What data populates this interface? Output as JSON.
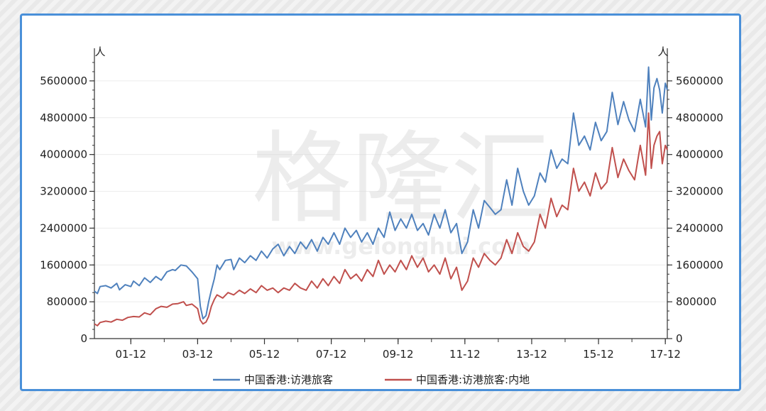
{
  "watermark": {
    "brand": "格隆汇",
    "url": "www.gelonghui.com"
  },
  "chart_data": {
    "type": "line",
    "title": "",
    "x_tick_labels": [
      "01-12",
      "03-12",
      "05-12",
      "07-12",
      "09-12",
      "11-12",
      "13-12",
      "15-12",
      "17-12"
    ],
    "x_range": [
      2000.83,
      2017.98
    ],
    "y_unit_left": "人",
    "y_unit_right": "人",
    "ylim": [
      0,
      6000000
    ],
    "y_ticks": [
      0,
      800000,
      1600000,
      2400000,
      3200000,
      4000000,
      4800000,
      5600000
    ],
    "y_tick_labels": [
      "0",
      "800000",
      "1600000",
      "2400000",
      "3200000",
      "4000000",
      "4800000",
      "5600000"
    ],
    "grid": true,
    "legend_position": "bottom",
    "series": [
      {
        "name": "中国香港:访港旅客",
        "color": "#4f81bd",
        "points": [
          [
            2000.83,
            1030000
          ],
          [
            2000.92,
            980000
          ],
          [
            2001.0,
            1130000
          ],
          [
            2001.17,
            1150000
          ],
          [
            2001.33,
            1100000
          ],
          [
            2001.5,
            1200000
          ],
          [
            2001.58,
            1060000
          ],
          [
            2001.75,
            1170000
          ],
          [
            2001.92,
            1130000
          ],
          [
            2002.0,
            1250000
          ],
          [
            2002.17,
            1150000
          ],
          [
            2002.33,
            1320000
          ],
          [
            2002.5,
            1220000
          ],
          [
            2002.67,
            1350000
          ],
          [
            2002.83,
            1270000
          ],
          [
            2003.0,
            1450000
          ],
          [
            2003.17,
            1500000
          ],
          [
            2003.25,
            1480000
          ],
          [
            2003.42,
            1600000
          ],
          [
            2003.58,
            1580000
          ],
          [
            2003.75,
            1450000
          ],
          [
            2003.92,
            1300000
          ],
          [
            2004.0,
            700000
          ],
          [
            2004.08,
            430000
          ],
          [
            2004.17,
            500000
          ],
          [
            2004.25,
            800000
          ],
          [
            2004.33,
            1050000
          ],
          [
            2004.42,
            1300000
          ],
          [
            2004.5,
            1600000
          ],
          [
            2004.58,
            1500000
          ],
          [
            2004.75,
            1700000
          ],
          [
            2004.92,
            1720000
          ],
          [
            2005.0,
            1500000
          ],
          [
            2005.17,
            1750000
          ],
          [
            2005.33,
            1650000
          ],
          [
            2005.5,
            1800000
          ],
          [
            2005.67,
            1700000
          ],
          [
            2005.83,
            1900000
          ],
          [
            2006.0,
            1750000
          ],
          [
            2006.17,
            1950000
          ],
          [
            2006.33,
            2050000
          ],
          [
            2006.5,
            1800000
          ],
          [
            2006.67,
            2000000
          ],
          [
            2006.83,
            1850000
          ],
          [
            2007.0,
            2100000
          ],
          [
            2007.17,
            1950000
          ],
          [
            2007.33,
            2150000
          ],
          [
            2007.5,
            1900000
          ],
          [
            2007.67,
            2200000
          ],
          [
            2007.83,
            2050000
          ],
          [
            2008.0,
            2300000
          ],
          [
            2008.17,
            2050000
          ],
          [
            2008.33,
            2400000
          ],
          [
            2008.5,
            2200000
          ],
          [
            2008.67,
            2350000
          ],
          [
            2008.83,
            2100000
          ],
          [
            2009.0,
            2300000
          ],
          [
            2009.17,
            2050000
          ],
          [
            2009.33,
            2400000
          ],
          [
            2009.5,
            2200000
          ],
          [
            2009.67,
            2750000
          ],
          [
            2009.83,
            2350000
          ],
          [
            2010.0,
            2600000
          ],
          [
            2010.17,
            2400000
          ],
          [
            2010.33,
            2700000
          ],
          [
            2010.5,
            2350000
          ],
          [
            2010.67,
            2500000
          ],
          [
            2010.83,
            2250000
          ],
          [
            2011.0,
            2700000
          ],
          [
            2011.17,
            2400000
          ],
          [
            2011.33,
            2800000
          ],
          [
            2011.5,
            2300000
          ],
          [
            2011.67,
            2500000
          ],
          [
            2011.83,
            1850000
          ],
          [
            2012.0,
            2100000
          ],
          [
            2012.17,
            2800000
          ],
          [
            2012.33,
            2400000
          ],
          [
            2012.5,
            3000000
          ],
          [
            2012.67,
            2850000
          ],
          [
            2012.83,
            2700000
          ],
          [
            2013.0,
            2800000
          ],
          [
            2013.17,
            3450000
          ],
          [
            2013.33,
            2900000
          ],
          [
            2013.5,
            3700000
          ],
          [
            2013.67,
            3200000
          ],
          [
            2013.83,
            2900000
          ],
          [
            2014.0,
            3100000
          ],
          [
            2014.17,
            3600000
          ],
          [
            2014.33,
            3400000
          ],
          [
            2014.5,
            4100000
          ],
          [
            2014.67,
            3700000
          ],
          [
            2014.83,
            3900000
          ],
          [
            2015.0,
            3800000
          ],
          [
            2015.17,
            4900000
          ],
          [
            2015.33,
            4200000
          ],
          [
            2015.5,
            4400000
          ],
          [
            2015.67,
            4100000
          ],
          [
            2015.83,
            4700000
          ],
          [
            2016.0,
            4300000
          ],
          [
            2016.17,
            4500000
          ],
          [
            2016.33,
            5350000
          ],
          [
            2016.5,
            4650000
          ],
          [
            2016.67,
            5150000
          ],
          [
            2016.83,
            4750000
          ],
          [
            2017.0,
            4500000
          ],
          [
            2017.17,
            5200000
          ],
          [
            2017.33,
            4600000
          ],
          [
            2017.42,
            5900000
          ],
          [
            2017.5,
            4750000
          ],
          [
            2017.58,
            5450000
          ],
          [
            2017.67,
            5650000
          ],
          [
            2017.75,
            5400000
          ],
          [
            2017.83,
            4900000
          ],
          [
            2017.92,
            5550000
          ],
          [
            2017.98,
            5400000
          ]
        ]
      },
      {
        "name": "中国香港:访港旅客:内地",
        "color": "#c0504d",
        "points": [
          [
            2000.83,
            320000
          ],
          [
            2000.92,
            280000
          ],
          [
            2001.0,
            350000
          ],
          [
            2001.17,
            380000
          ],
          [
            2001.33,
            360000
          ],
          [
            2001.5,
            420000
          ],
          [
            2001.67,
            400000
          ],
          [
            2001.83,
            460000
          ],
          [
            2002.0,
            480000
          ],
          [
            2002.17,
            470000
          ],
          [
            2002.33,
            560000
          ],
          [
            2002.5,
            520000
          ],
          [
            2002.67,
            650000
          ],
          [
            2002.83,
            700000
          ],
          [
            2003.0,
            680000
          ],
          [
            2003.17,
            750000
          ],
          [
            2003.33,
            760000
          ],
          [
            2003.5,
            800000
          ],
          [
            2003.58,
            720000
          ],
          [
            2003.75,
            750000
          ],
          [
            2003.92,
            650000
          ],
          [
            2004.0,
            400000
          ],
          [
            2004.08,
            320000
          ],
          [
            2004.17,
            360000
          ],
          [
            2004.25,
            480000
          ],
          [
            2004.33,
            700000
          ],
          [
            2004.42,
            850000
          ],
          [
            2004.5,
            950000
          ],
          [
            2004.67,
            880000
          ],
          [
            2004.83,
            1000000
          ],
          [
            2005.0,
            950000
          ],
          [
            2005.17,
            1050000
          ],
          [
            2005.33,
            980000
          ],
          [
            2005.5,
            1080000
          ],
          [
            2005.67,
            1000000
          ],
          [
            2005.83,
            1150000
          ],
          [
            2006.0,
            1050000
          ],
          [
            2006.17,
            1100000
          ],
          [
            2006.33,
            1000000
          ],
          [
            2006.5,
            1100000
          ],
          [
            2006.67,
            1050000
          ],
          [
            2006.83,
            1200000
          ],
          [
            2007.0,
            1100000
          ],
          [
            2007.17,
            1050000
          ],
          [
            2007.33,
            1250000
          ],
          [
            2007.5,
            1100000
          ],
          [
            2007.67,
            1300000
          ],
          [
            2007.83,
            1150000
          ],
          [
            2008.0,
            1350000
          ],
          [
            2008.17,
            1200000
          ],
          [
            2008.33,
            1500000
          ],
          [
            2008.5,
            1300000
          ],
          [
            2008.67,
            1400000
          ],
          [
            2008.83,
            1250000
          ],
          [
            2009.0,
            1500000
          ],
          [
            2009.17,
            1350000
          ],
          [
            2009.33,
            1700000
          ],
          [
            2009.5,
            1400000
          ],
          [
            2009.67,
            1600000
          ],
          [
            2009.83,
            1450000
          ],
          [
            2010.0,
            1700000
          ],
          [
            2010.17,
            1500000
          ],
          [
            2010.33,
            1800000
          ],
          [
            2010.5,
            1550000
          ],
          [
            2010.67,
            1750000
          ],
          [
            2010.83,
            1450000
          ],
          [
            2011.0,
            1600000
          ],
          [
            2011.17,
            1400000
          ],
          [
            2011.33,
            1750000
          ],
          [
            2011.5,
            1300000
          ],
          [
            2011.67,
            1550000
          ],
          [
            2011.83,
            1050000
          ],
          [
            2012.0,
            1250000
          ],
          [
            2012.17,
            1750000
          ],
          [
            2012.33,
            1550000
          ],
          [
            2012.5,
            1850000
          ],
          [
            2012.67,
            1700000
          ],
          [
            2012.83,
            1600000
          ],
          [
            2013.0,
            1750000
          ],
          [
            2013.17,
            2150000
          ],
          [
            2013.33,
            1850000
          ],
          [
            2013.5,
            2300000
          ],
          [
            2013.67,
            2000000
          ],
          [
            2013.83,
            1900000
          ],
          [
            2014.0,
            2100000
          ],
          [
            2014.17,
            2700000
          ],
          [
            2014.33,
            2400000
          ],
          [
            2014.5,
            3050000
          ],
          [
            2014.67,
            2650000
          ],
          [
            2014.83,
            2900000
          ],
          [
            2015.0,
            2800000
          ],
          [
            2015.17,
            3700000
          ],
          [
            2015.33,
            3200000
          ],
          [
            2015.5,
            3400000
          ],
          [
            2015.67,
            3100000
          ],
          [
            2015.83,
            3600000
          ],
          [
            2016.0,
            3250000
          ],
          [
            2016.17,
            3400000
          ],
          [
            2016.33,
            4150000
          ],
          [
            2016.5,
            3500000
          ],
          [
            2016.67,
            3900000
          ],
          [
            2016.83,
            3650000
          ],
          [
            2017.0,
            3450000
          ],
          [
            2017.17,
            4200000
          ],
          [
            2017.33,
            3550000
          ],
          [
            2017.42,
            4900000
          ],
          [
            2017.5,
            3700000
          ],
          [
            2017.58,
            4200000
          ],
          [
            2017.67,
            4400000
          ],
          [
            2017.75,
            4500000
          ],
          [
            2017.83,
            3800000
          ],
          [
            2017.92,
            4200000
          ],
          [
            2017.98,
            4100000
          ]
        ]
      }
    ]
  }
}
